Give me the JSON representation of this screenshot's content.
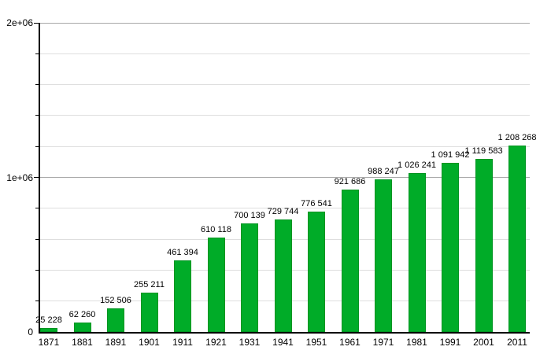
{
  "chart_data": {
    "type": "bar",
    "title": "",
    "xlabel": "",
    "ylabel": "",
    "categories": [
      "1871",
      "1881",
      "1891",
      "1901",
      "1911",
      "1921",
      "1931",
      "1941",
      "1951",
      "1961",
      "1971",
      "1981",
      "1991",
      "2001",
      "2011"
    ],
    "values": [
      25228,
      62260,
      152506,
      255211,
      461394,
      610118,
      700139,
      729744,
      776541,
      921686,
      988247,
      1026241,
      1091942,
      1119583,
      1208268
    ],
    "value_labels": [
      "25 228",
      "62 260",
      "152 506",
      "255 211",
      "461 394",
      "610 118",
      "700 139",
      "729 744",
      "776 541",
      "921 686",
      "988 247",
      "1 026 241",
      "1 091 942",
      "1 119 583",
      "1 208 268"
    ],
    "ylim": [
      0,
      2000000
    ],
    "yticks": [
      {
        "value": 0,
        "label": "0"
      },
      {
        "value": 1000000,
        "label": "1e+06"
      },
      {
        "value": 2000000,
        "label": "2e+06"
      }
    ],
    "minor_tick_step": 200000,
    "grid": true,
    "legend": null,
    "colors": {
      "bar_fill": "#00ac28",
      "bar_border": "#009421",
      "axis": "#000000",
      "grid_minor": "#dedede",
      "grid_major": "#a8a8a8",
      "text": "#000000",
      "background": "#ffffff"
    }
  }
}
